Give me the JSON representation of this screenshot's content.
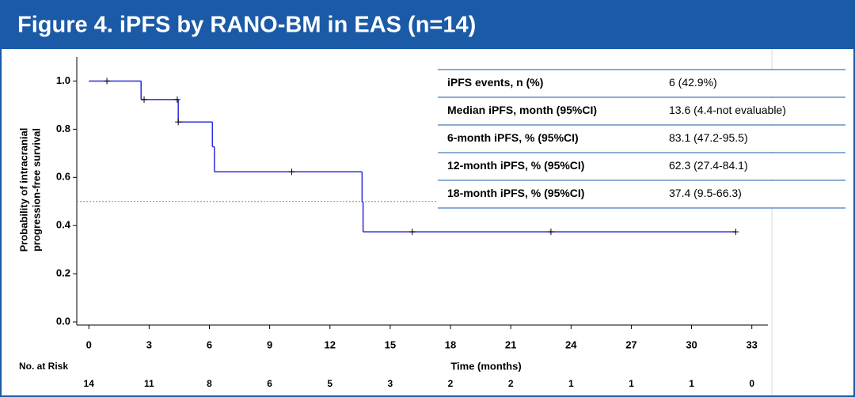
{
  "chart_data": {
    "type": "kaplan-meier",
    "title": "Figure 4. iPFS by RANO-BM in EAS (n=14)",
    "x_label": "Time (months)",
    "y_label": [
      "Probability of intracranial",
      "progression-free survival"
    ],
    "color": "#2b2bd6",
    "x": [
      0,
      2.6,
      4.45,
      6.15,
      6.25,
      13.6,
      13.65,
      32.2
    ],
    "values": [
      1.0,
      0.923,
      0.83,
      0.727,
      0.623,
      0.498,
      0.374,
      0.374
    ],
    "censored": {
      "x": [
        0.9,
        2.75,
        4.4,
        4.45,
        10.1,
        16.1,
        23.0,
        32.2
      ],
      "values": [
        1.0,
        0.923,
        0.923,
        0.83,
        0.623,
        0.374,
        0.374,
        0.374
      ]
    },
    "reference_line": 0.5,
    "xlim": [
      -0.6,
      33.8
    ],
    "ylim": [
      -0.013,
      1.1
    ],
    "xticks": [
      0,
      3,
      6,
      9,
      12,
      15,
      18,
      21,
      24,
      27,
      30,
      33
    ],
    "yticks": [
      {
        "value": 0,
        "label": "0.0"
      },
      0.2,
      0.4,
      0.6,
      0.8,
      {
        "value": 1,
        "label": "1.0"
      }
    ],
    "risk_table": {
      "label": "No. at Risk",
      "values": [
        14,
        11,
        8,
        6,
        5,
        3,
        2,
        2,
        1,
        1,
        1,
        0
      ]
    },
    "table": [
      [
        "iPFS events, n (%)",
        "6 (42.9%)"
      ],
      [
        "Median iPFS, month (95%CI)",
        "13.6 (4.4-not evaluable)"
      ],
      [
        "6-month iPFS, % (95%CI)",
        "83.1 (47.2-95.5)"
      ],
      [
        "12-month iPFS, % (95%CI)",
        "62.3 (27.4-84.1)"
      ],
      [
        "18-month iPFS, % (95%CI)",
        "37.4 (9.5-66.3)"
      ]
    ]
  }
}
